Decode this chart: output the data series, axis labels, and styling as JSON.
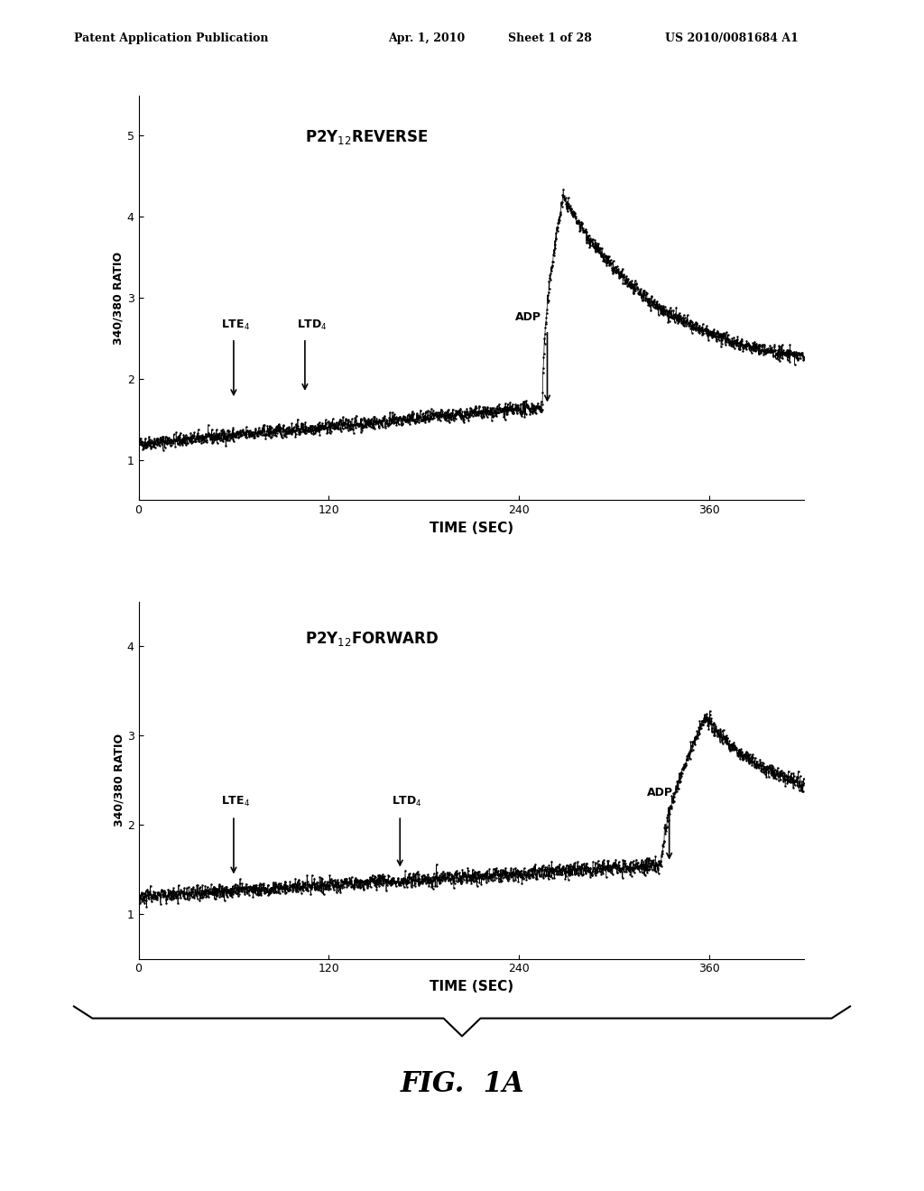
{
  "bg_color": "#ffffff",
  "header_text": "Patent Application Publication",
  "header_date": "Apr. 1, 2010",
  "header_sheet": "Sheet 1 of 28",
  "header_patent": "US 2010/0081684 A1",
  "fig_label": "FIG.  1A",
  "plot1": {
    "title": "P2Y$_{12}$REVERSE",
    "ylabel": "340/380 RATIO",
    "xlabel": "TIME (SEC)",
    "xlim": [
      0,
      420
    ],
    "ylim": [
      0.5,
      5.5
    ],
    "yticks": [
      1,
      2,
      3,
      4,
      5
    ],
    "xticks": [
      0,
      120,
      240,
      360
    ],
    "lte4_x": 60,
    "lte4_label": "LTE$_4$",
    "ltd4_x": 105,
    "ltd4_label": "LTD$_4$",
    "adp_x": 258,
    "adp_label": "ADP"
  },
  "plot2": {
    "title": "P2Y$_{12}$FORWARD",
    "ylabel": "340/380 RATIO",
    "xlabel": "TIME (SEC)",
    "xlim": [
      0,
      420
    ],
    "ylim": [
      0.5,
      4.5
    ],
    "yticks": [
      1,
      2,
      3,
      4
    ],
    "xticks": [
      0,
      120,
      240,
      360
    ],
    "lte4_x": 60,
    "lte4_label": "LTE$_4$",
    "ltd4_x": 165,
    "ltd4_label": "LTD$_4$",
    "adp_x": 335,
    "adp_label": "ADP"
  }
}
